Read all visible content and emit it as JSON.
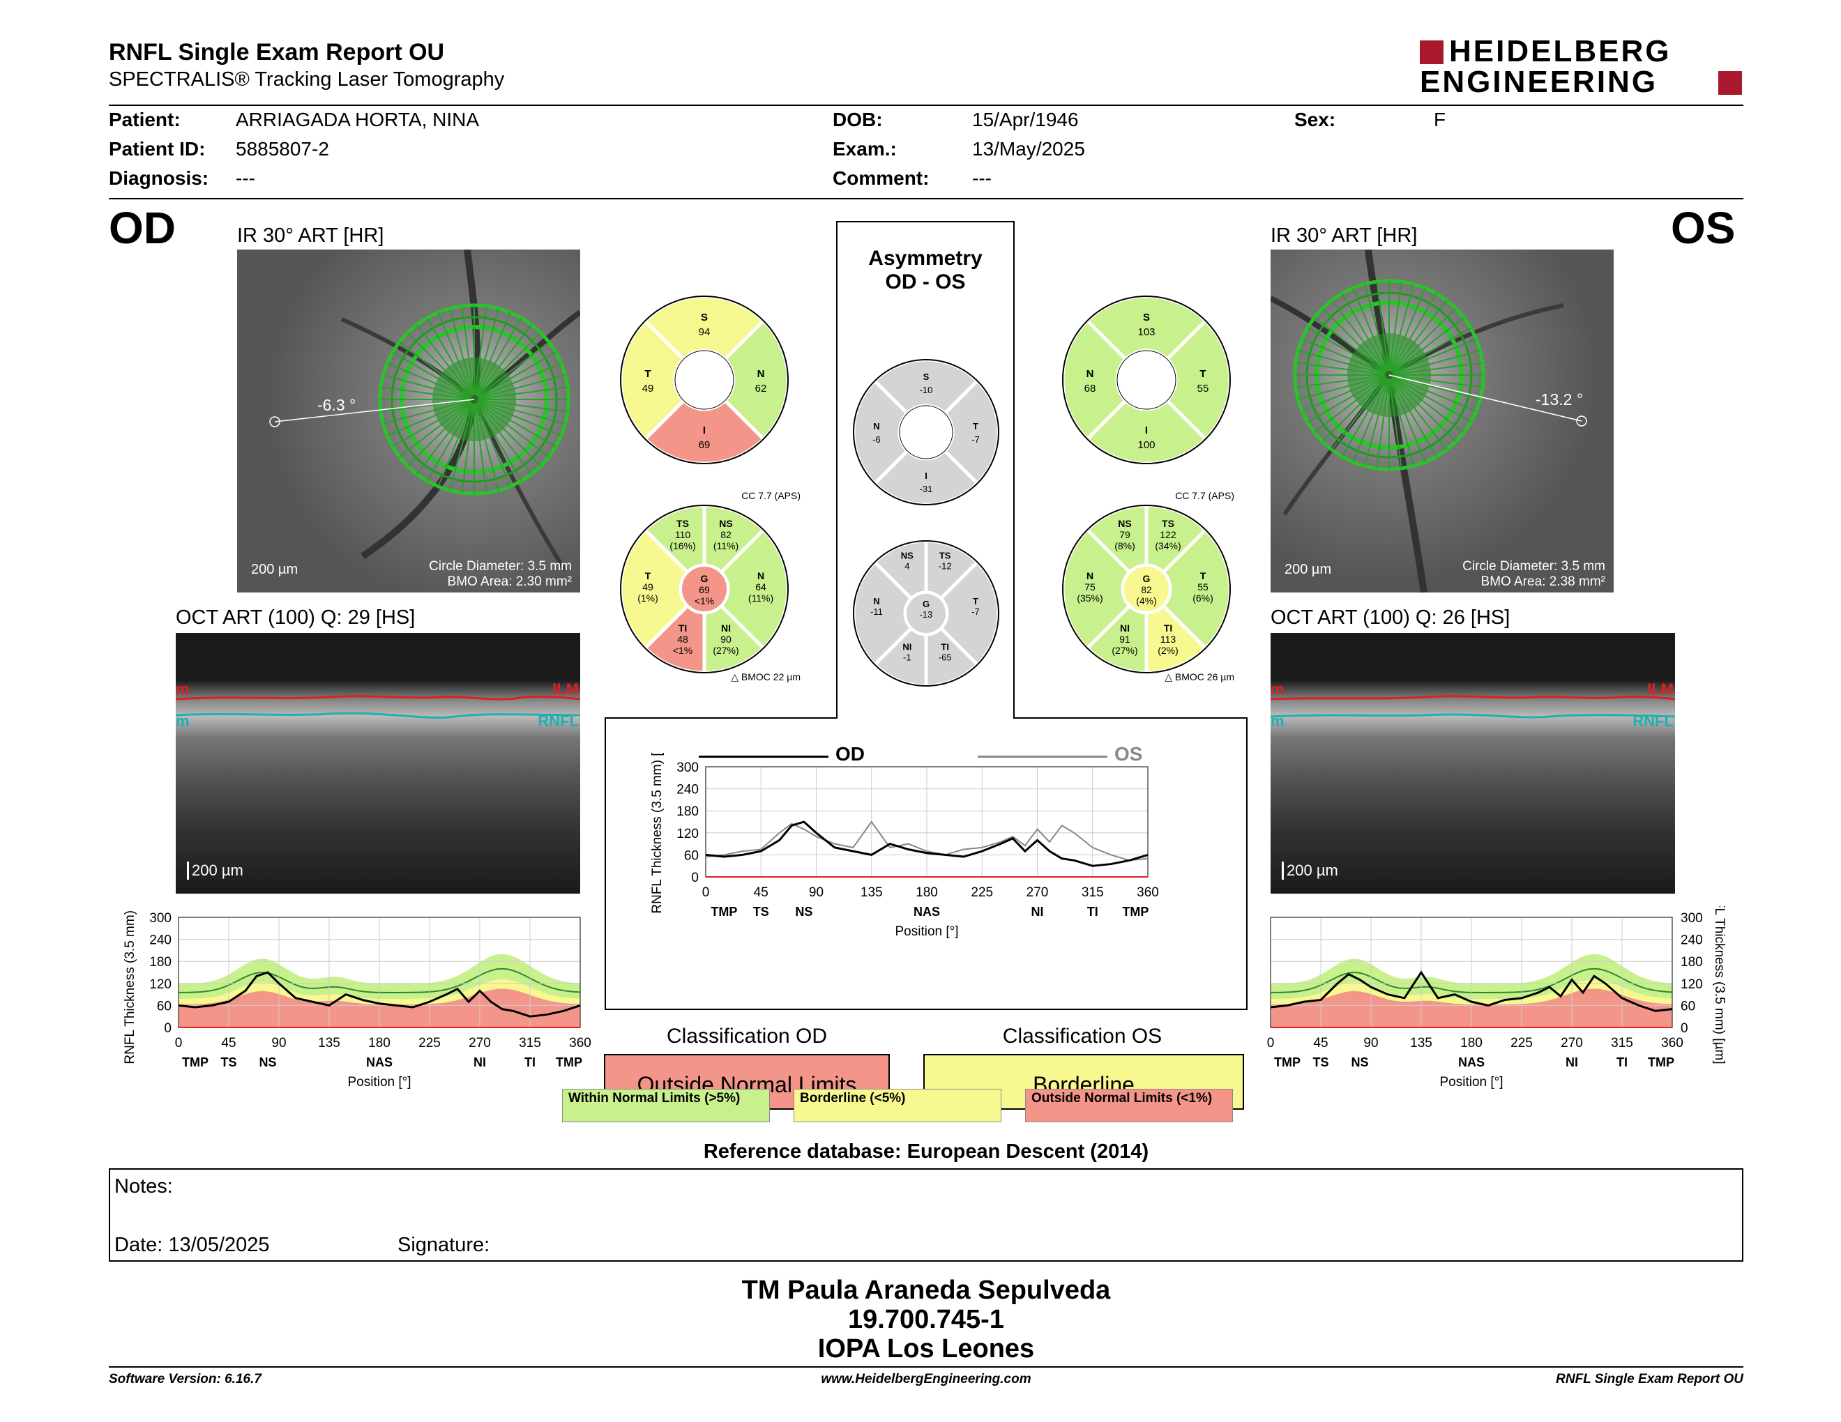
{
  "header": {
    "title": "RNFL Single Exam Report OU",
    "subtitle": "SPECTRALIS® Tracking Laser Tomography",
    "logo_line1": "HEIDELBERG",
    "logo_line2": "ENGINEERING"
  },
  "patient": {
    "patient_label": "Patient:",
    "patient_value": "ARRIAGADA HORTA, NINA",
    "id_label": "Patient ID:",
    "id_value": "5885807-2",
    "diag_label": "Diagnosis:",
    "diag_value": "---",
    "dob_label": "DOB:",
    "dob_value": "15/Apr/1946",
    "exam_label": "Exam.:",
    "exam_value": "13/May/2025",
    "comment_label": "Comment:",
    "comment_value": "---",
    "sex_label": "Sex:",
    "sex_value": "F"
  },
  "od": {
    "eye": "OD",
    "ir_title": "IR 30° ART [HR]",
    "angle": "-6.3 °",
    "scale": "200 µm",
    "circle_diameter": "Circle Diameter: 3.5 mm",
    "bmo_area": "BMO Area: 2.30 mm²",
    "oct_title": "OCT ART (100) Q: 29 [HS]",
    "oct_scale": "200 µm",
    "ilm": "ILM",
    "rnfl": "RNFL",
    "left_label": "m",
    "sectors4": {
      "S": "94",
      "T": "49",
      "N": "62",
      "I": "69"
    },
    "cc": "CC 7.7 (APS)",
    "bmoc": "BMOC 22 µm",
    "sectors6": {
      "TS": [
        "110",
        "(16%)"
      ],
      "NS": [
        "82",
        "(11%)"
      ],
      "T": [
        "49",
        "(1%)"
      ],
      "G": [
        "69",
        "<1%"
      ],
      "N": [
        "64",
        "(11%)"
      ],
      "TI": [
        "48",
        "<1%"
      ],
      "NI": [
        "90",
        "(27%)"
      ]
    }
  },
  "os": {
    "eye": "OS",
    "ir_title": "IR 30° ART [HR]",
    "angle": "-13.2 °",
    "scale": "200 µm",
    "circle_diameter": "Circle Diameter: 3.5 mm",
    "bmo_area": "BMO Area: 2.38 mm²",
    "oct_title": "OCT ART (100) Q: 26 [HS]",
    "oct_scale": "200 µm",
    "ilm": "ILM",
    "rnfl": "RNFL",
    "left_label": "m",
    "sectors4": {
      "S": "103",
      "N": "68",
      "T": "55",
      "I": "100"
    },
    "cc": "CC 7.7 (APS)",
    "bmoc": "BMOC 26 µm",
    "sectors6": {
      "NS": [
        "79",
        "(8%)"
      ],
      "TS": [
        "122",
        "(34%)"
      ],
      "N": [
        "75",
        "(35%)"
      ],
      "G": [
        "82",
        "(4%)"
      ],
      "T": [
        "55",
        "(6%)"
      ],
      "NI": [
        "91",
        "(27%)"
      ],
      "TI": [
        "113",
        "(2%)"
      ]
    }
  },
  "asym": {
    "title1": "Asymmetry",
    "title2": "OD - OS",
    "sectors4": {
      "S": "-10",
      "N": "-6",
      "T": "-7",
      "I": "-31"
    },
    "sectors6": {
      "NS": "4",
      "TS": "-12",
      "N": "-11",
      "G": "-13",
      "T": "-7",
      "NI": "-1",
      "TI": "-65"
    }
  },
  "legend": {
    "od": "OD",
    "os": "OS",
    "ylabel": "RNFL Thickness (3.5 mm) [µm]",
    "xlabel": "Position [°]",
    "yticks": [
      "0",
      "60",
      "120",
      "180",
      "240",
      "300"
    ],
    "xticks": [
      "0",
      "45",
      "90",
      "135",
      "180",
      "225",
      "270",
      "315",
      "360"
    ],
    "sectors": [
      "TMP",
      "TS",
      "NS",
      "NAS",
      "NI",
      "TI",
      "TMP"
    ]
  },
  "classification": {
    "od_title": "Classification OD",
    "od_value": "Outside Normal Limits",
    "os_title": "Classification OS",
    "os_value": "Borderline",
    "wnl": "Within Normal Limits (>5%)",
    "bl": "Borderline (<5%)",
    "onl": "Outside Normal Limits (<1%)",
    "reference": "Reference database: European Descent (2014)"
  },
  "notes": {
    "notes_label": "Notes:",
    "date_label": "Date: 13/05/2025",
    "signature_label": "Signature:"
  },
  "signature_block": {
    "line1": "TM Paula Araneda Sepulveda",
    "line2": "19.700.745-1",
    "line3": "IOPA Los Leones"
  },
  "footer": {
    "version": "Software Version: 6.16.7",
    "url": "www.HeidelbergEngineering.com",
    "report": "RNFL Single Exam Report OU"
  },
  "colors": {
    "green": "#c8f08c",
    "yellow": "#f8f890",
    "red": "#f4958a",
    "grey": "#d4d4d4",
    "logo": "#a8192e"
  },
  "chart_data": [
    {
      "type": "line",
      "title": "OD",
      "xlabel": "Position [°]",
      "ylabel": "RNFL Thickness (3.5 mm) [µm]",
      "xlim": [
        0,
        360
      ],
      "ylim": [
        0,
        300
      ],
      "series": [
        {
          "name": "OD",
          "x": [
            0,
            15,
            30,
            45,
            60,
            70,
            80,
            90,
            105,
            120,
            135,
            150,
            165,
            180,
            195,
            210,
            225,
            240,
            250,
            260,
            270,
            280,
            290,
            300,
            315,
            330,
            345,
            360
          ],
          "y": [
            60,
            55,
            60,
            70,
            100,
            140,
            150,
            120,
            80,
            70,
            60,
            90,
            75,
            65,
            60,
            55,
            70,
            90,
            105,
            70,
            100,
            70,
            50,
            45,
            30,
            35,
            45,
            60
          ]
        }
      ]
    },
    {
      "type": "line",
      "title": "Asymmetry",
      "xlabel": "Position [°]",
      "ylabel": "RNFL Thickness (3.5 mm) [µm]",
      "xlim": [
        0,
        360
      ],
      "ylim": [
        0,
        300
      ],
      "series": [
        {
          "name": "OD",
          "x": [
            0,
            15,
            30,
            45,
            60,
            70,
            80,
            90,
            105,
            120,
            135,
            150,
            165,
            180,
            195,
            210,
            225,
            240,
            250,
            260,
            270,
            280,
            290,
            300,
            315,
            330,
            345,
            360
          ],
          "y": [
            60,
            55,
            60,
            70,
            100,
            140,
            150,
            120,
            80,
            70,
            60,
            90,
            75,
            65,
            60,
            55,
            70,
            90,
            105,
            70,
            100,
            70,
            50,
            45,
            30,
            35,
            45,
            60
          ]
        },
        {
          "name": "OS",
          "x": [
            0,
            15,
            30,
            45,
            60,
            70,
            80,
            90,
            105,
            120,
            135,
            150,
            165,
            180,
            195,
            210,
            225,
            240,
            250,
            260,
            270,
            280,
            290,
            300,
            315,
            330,
            345,
            360
          ],
          "y": [
            55,
            60,
            70,
            75,
            120,
            145,
            130,
            110,
            90,
            80,
            150,
            80,
            90,
            70,
            60,
            75,
            80,
            95,
            110,
            85,
            130,
            95,
            140,
            120,
            80,
            60,
            45,
            50
          ]
        }
      ]
    },
    {
      "type": "line",
      "title": "OS",
      "xlabel": "Position [°]",
      "ylabel": "RNFL Thickness (3.5 mm) [µm]",
      "xlim": [
        0,
        360
      ],
      "ylim": [
        0,
        300
      ],
      "series": [
        {
          "name": "OS",
          "x": [
            0,
            15,
            30,
            45,
            60,
            70,
            80,
            90,
            105,
            120,
            135,
            150,
            165,
            180,
            195,
            210,
            225,
            240,
            250,
            260,
            270,
            280,
            290,
            300,
            315,
            330,
            345,
            360
          ],
          "y": [
            55,
            60,
            70,
            75,
            120,
            145,
            130,
            110,
            90,
            80,
            150,
            80,
            90,
            70,
            60,
            75,
            80,
            95,
            110,
            85,
            130,
            95,
            140,
            120,
            80,
            60,
            45,
            50
          ]
        }
      ]
    }
  ]
}
